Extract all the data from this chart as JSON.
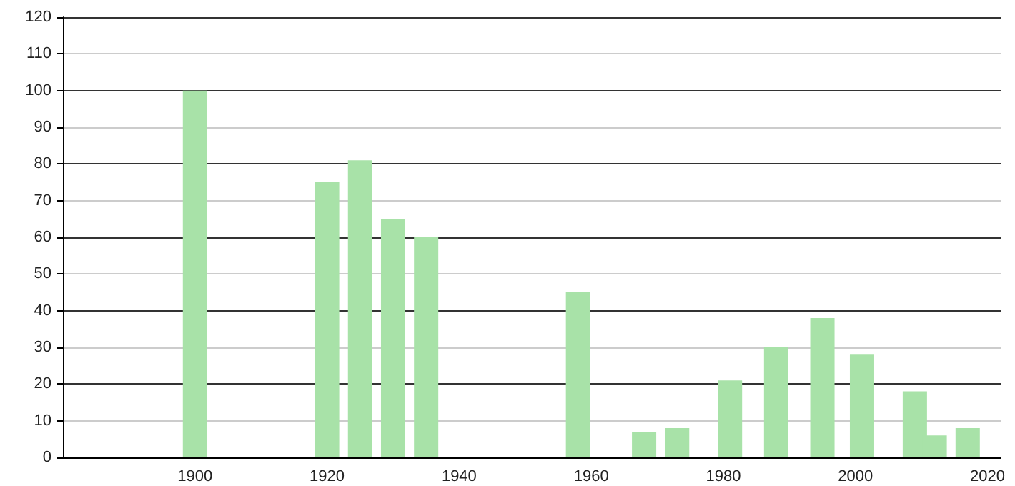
{
  "chart_data": {
    "type": "bar",
    "x": [
      1900,
      1920,
      1925,
      1930,
      1935,
      1958,
      1968,
      1973,
      1981,
      1988,
      1995,
      2001,
      2009,
      2012,
      2017
    ],
    "values": [
      100,
      75,
      81,
      65,
      60,
      45,
      7,
      8,
      21,
      30,
      38,
      28,
      18,
      6,
      8
    ],
    "color": "#a8e2a8",
    "xlim": [
      1880,
      2022
    ],
    "xticks": [
      1900,
      1920,
      1940,
      1960,
      1980,
      2000,
      2020
    ],
    "ylim": [
      0,
      120
    ],
    "yticks": [
      0,
      10,
      20,
      30,
      40,
      50,
      60,
      70,
      80,
      90,
      100,
      110,
      120
    ],
    "grid": "y"
  }
}
